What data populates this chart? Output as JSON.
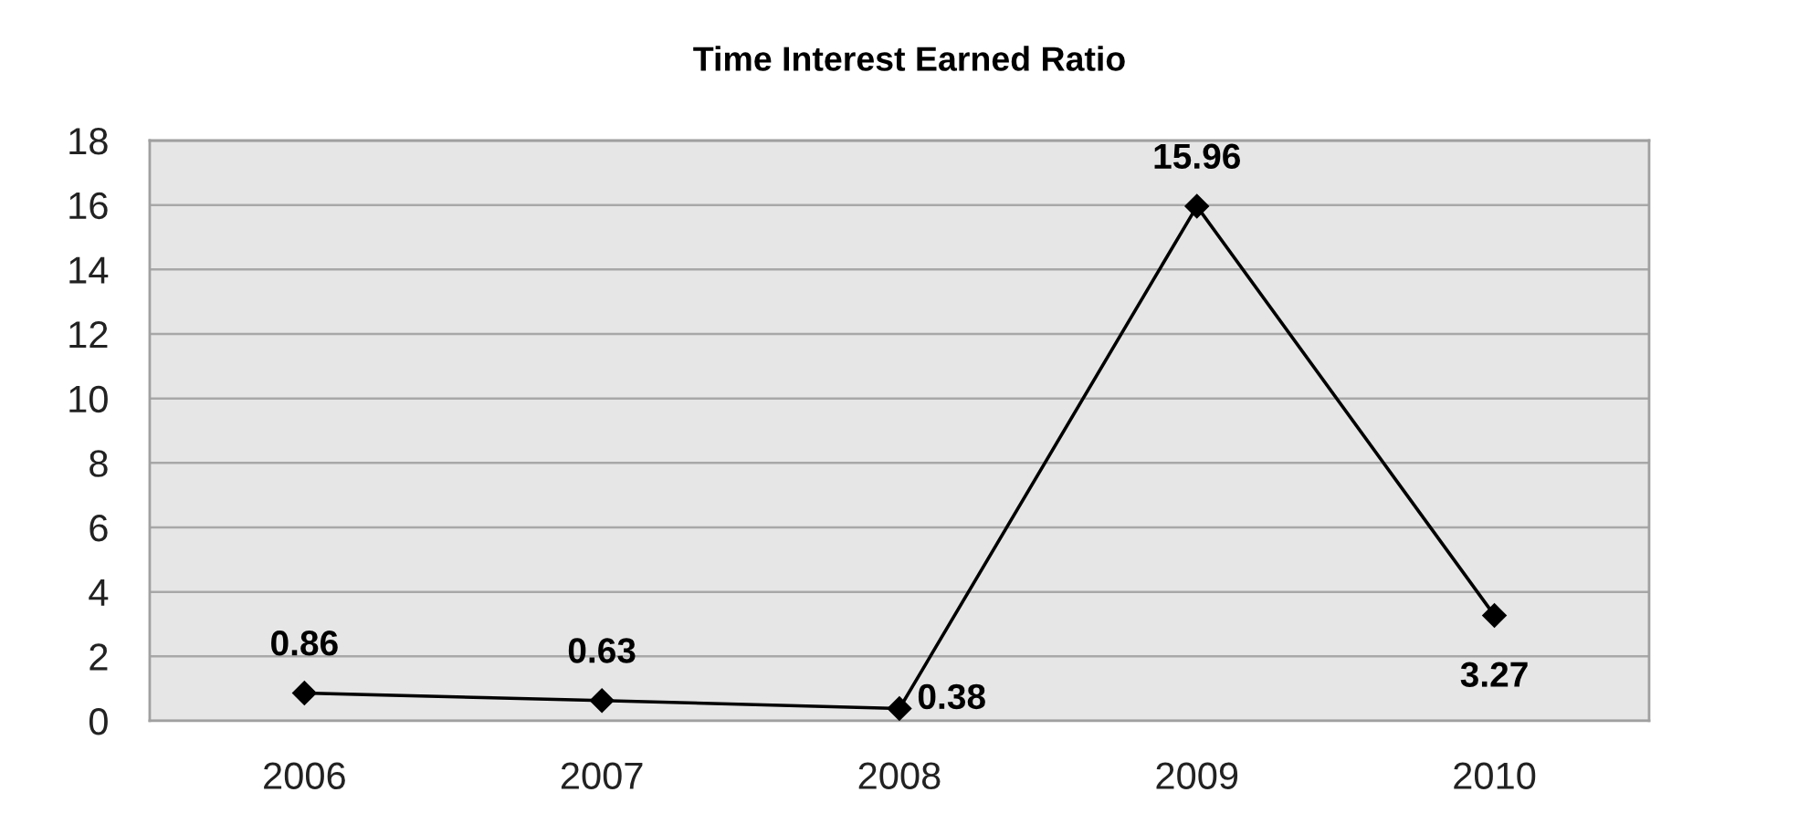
{
  "chart_data": {
    "type": "line",
    "title": "Time Interest Earned Ratio",
    "categories": [
      "2006",
      "2007",
      "2008",
      "2009",
      "2010"
    ],
    "series": [
      {
        "color": "#000000",
        "values": [
          0.86,
          0.63,
          0.38,
          15.96,
          3.27
        ]
      }
    ],
    "ylim": [
      0,
      18
    ],
    "yticks": [
      0,
      2,
      4,
      6,
      8,
      10,
      12,
      14,
      16,
      18
    ],
    "grid": "y",
    "marker": "diamond",
    "line_style": "solid",
    "data_labels": true
  }
}
